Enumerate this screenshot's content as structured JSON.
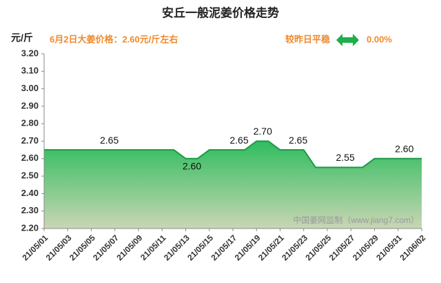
{
  "chart_data": {
    "type": "area",
    "title": "安丘一般泥姜价格走势",
    "y_label": "元/斤",
    "subtitle": "6月2日大姜价格：2.60元/斤左右",
    "change_text": "较昨日平稳",
    "change_value": "0.00%",
    "watermark": "中国姜网监制（www.jiang7.com）",
    "categories": [
      "21/05/01",
      null,
      "21/05/03",
      null,
      "21/05/05",
      null,
      "21/05/07",
      null,
      "21/05/09",
      null,
      "21/05/11",
      null,
      "21/05/13",
      null,
      "21/05/15",
      null,
      "21/05/17",
      null,
      "21/05/19",
      null,
      "21/05/21",
      null,
      "21/05/23",
      null,
      "21/05/25",
      null,
      "21/05/27",
      null,
      "21/05/29",
      null,
      "21/05/31",
      null,
      "21/06/02"
    ],
    "values": [
      2.65,
      2.65,
      2.65,
      2.65,
      2.65,
      2.65,
      2.65,
      2.65,
      2.65,
      2.65,
      2.65,
      2.65,
      2.6,
      2.6,
      2.65,
      2.65,
      2.65,
      2.65,
      2.7,
      2.7,
      2.65,
      2.65,
      2.65,
      2.55,
      2.55,
      2.55,
      2.55,
      2.55,
      2.6,
      2.6,
      2.6,
      2.6,
      2.6
    ],
    "value_labels": [
      null,
      null,
      null,
      null,
      null,
      "2.65",
      null,
      null,
      null,
      null,
      null,
      null,
      "2.60",
      null,
      null,
      null,
      "2.65",
      null,
      "2.70",
      null,
      null,
      "2.65",
      null,
      null,
      null,
      "2.55",
      null,
      null,
      null,
      null,
      "2.60",
      null,
      null
    ],
    "line_color": "#1a9a45",
    "ylim": [
      2.2,
      3.2
    ],
    "yticks": [
      {
        "value": 2.2,
        "label": "2.20"
      },
      {
        "value": 2.3,
        "label": "2.30"
      },
      {
        "value": 2.4,
        "label": "2.40"
      },
      {
        "value": 2.5,
        "label": "2.50"
      },
      {
        "value": 2.6,
        "label": "2.60"
      },
      {
        "value": 2.7,
        "label": "2.70"
      },
      {
        "value": 2.8,
        "label": "2.80"
      },
      {
        "value": 2.9,
        "label": "2.90"
      },
      {
        "value": 3.0,
        "label": "3.00"
      },
      {
        "value": 3.1,
        "label": "3.10"
      },
      {
        "value": 3.2,
        "label": "3.20"
      }
    ],
    "grid": false
  }
}
